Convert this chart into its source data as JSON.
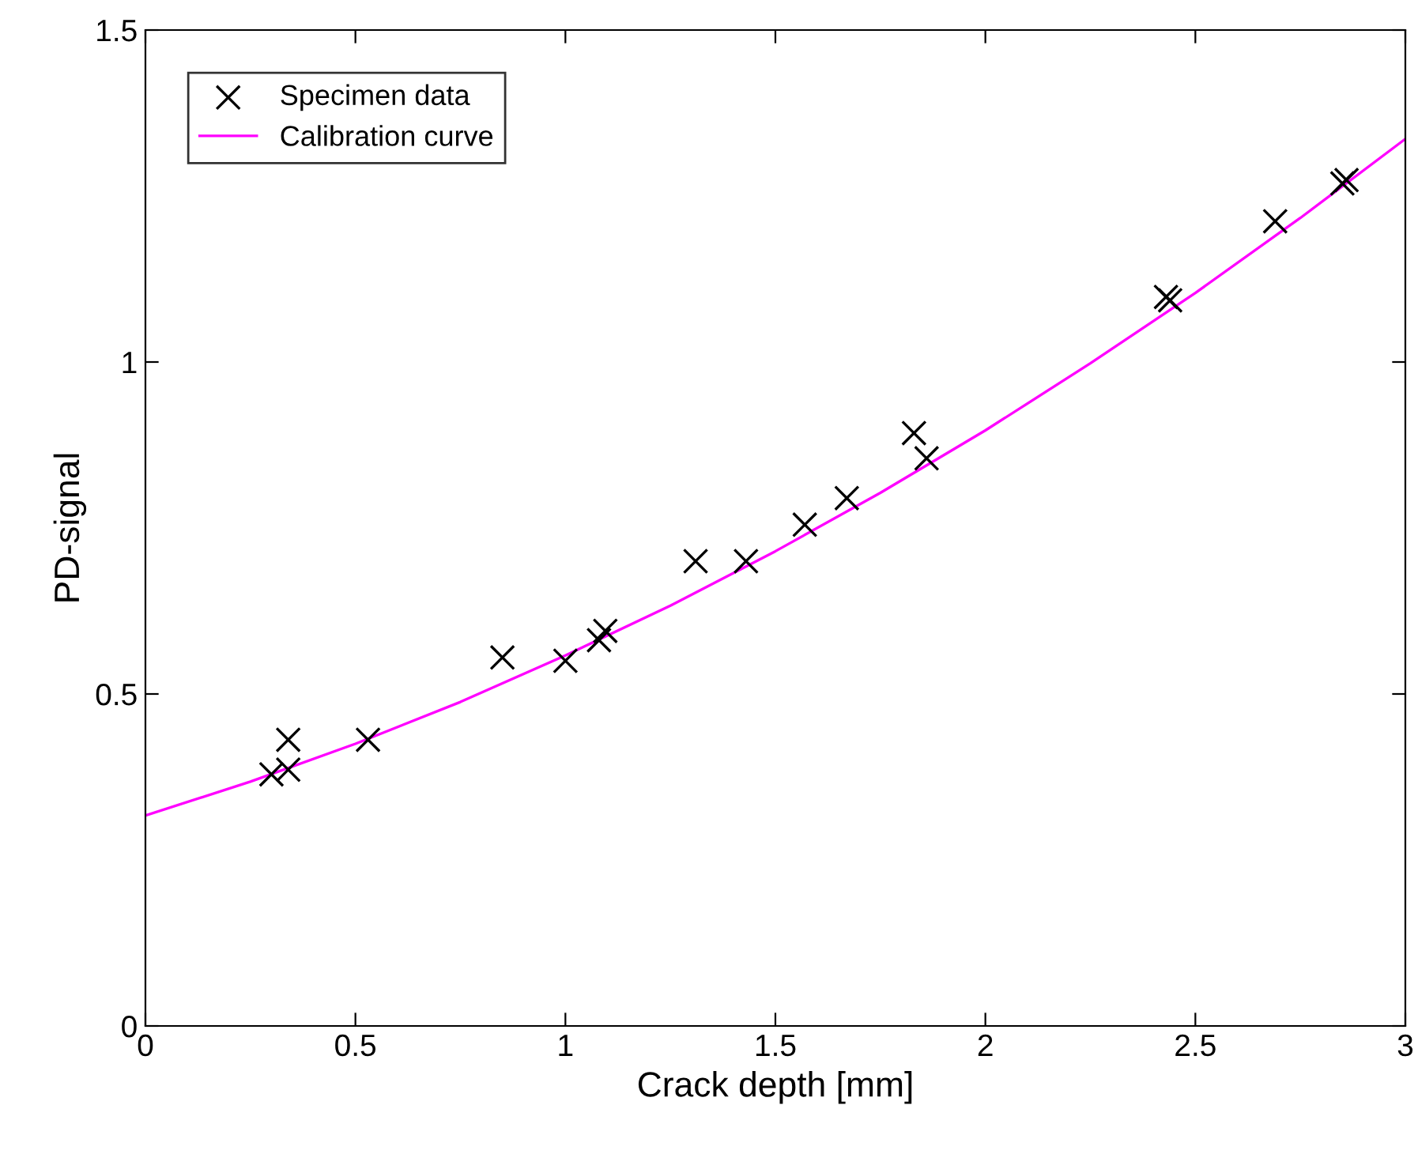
{
  "chart_data": {
    "type": "scatter",
    "xlabel": "Crack depth [mm]",
    "ylabel": "PD-signal",
    "series": [
      {
        "name": "Specimen data",
        "type": "scatter",
        "color": "#000000",
        "marker": "cross",
        "x": [
          0.3,
          0.34,
          0.34,
          0.53,
          0.85,
          1.0,
          1.08,
          1.095,
          1.31,
          1.43,
          1.57,
          1.67,
          1.83,
          1.86,
          2.43,
          2.44,
          2.69,
          2.85,
          2.86
        ],
        "values": [
          0.379,
          0.386,
          0.431,
          0.431,
          0.555,
          0.55,
          0.581,
          0.595,
          0.7,
          0.7,
          0.755,
          0.795,
          0.893,
          0.855,
          1.098,
          1.093,
          1.212,
          1.269,
          1.274
        ]
      },
      {
        "name": "Calibration curve",
        "type": "line",
        "color": "#ff00ff",
        "line_style": "solid",
        "x": [
          0,
          0.25,
          0.5,
          0.75,
          1,
          1.25,
          1.5,
          1.75,
          2,
          2.25,
          2.5,
          2.75,
          3
        ],
        "values": [
          0.317,
          0.368,
          0.425,
          0.488,
          0.558,
          0.633,
          0.715,
          0.803,
          0.897,
          0.998,
          1.104,
          1.217,
          1.336
        ]
      }
    ],
    "xlim": [
      0,
      3
    ],
    "ylim": [
      0,
      1.5
    ],
    "xticks": [
      0,
      0.5,
      1,
      1.5,
      2,
      2.5,
      3
    ],
    "yticks": [
      0,
      0.5,
      1,
      1.5
    ],
    "grid": false,
    "legend": "top left"
  }
}
